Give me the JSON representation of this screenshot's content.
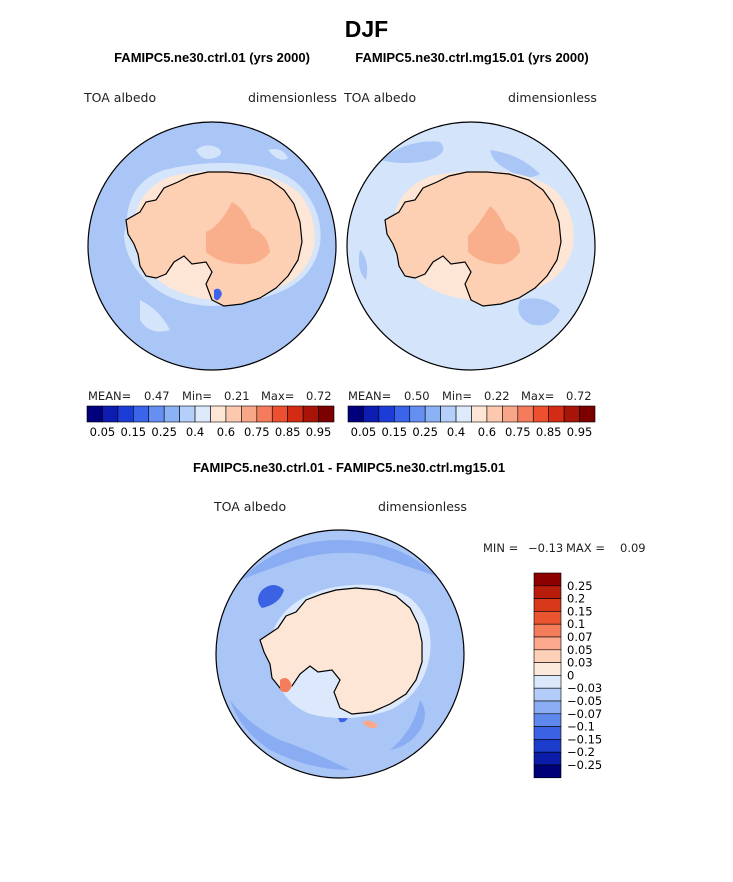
{
  "page": {
    "season": "DJF"
  },
  "chart_data": [
    {
      "type": "heatmap",
      "title": "FAMIPC5.ne30.ctrl.01 (yrs 2000)",
      "variable": "TOA albedo",
      "units": "dimensionless",
      "projection": "south polar stereographic",
      "stats": {
        "mean_label": "MEAN=",
        "mean": "0.47",
        "min_label": "Min=",
        "min": "0.21",
        "max_label": "Max=",
        "max": "0.72"
      },
      "levels": [
        0.05,
        0.1,
        0.15,
        0.2,
        0.25,
        0.3,
        0.35,
        0.4,
        0.5,
        0.6,
        0.65,
        0.7,
        0.75,
        0.8,
        0.85,
        0.9,
        0.95
      ],
      "tick_labels": [
        "0.05",
        "0.15",
        "0.25",
        "0.4",
        "0.6",
        "0.75",
        "0.85",
        "0.95"
      ]
    },
    {
      "type": "heatmap",
      "title": "FAMIPC5.ne30.ctrl.mg15.01 (yrs 2000)",
      "variable": "TOA albedo",
      "units": "dimensionless",
      "projection": "south polar stereographic",
      "stats": {
        "mean_label": "MEAN=",
        "mean": "0.50",
        "min_label": "Min=",
        "min": "0.22",
        "max_label": "Max=",
        "max": "0.72"
      },
      "levels": [
        0.05,
        0.1,
        0.15,
        0.2,
        0.25,
        0.3,
        0.35,
        0.4,
        0.5,
        0.6,
        0.65,
        0.7,
        0.75,
        0.8,
        0.85,
        0.9,
        0.95
      ],
      "tick_labels": [
        "0.05",
        "0.15",
        "0.25",
        "0.4",
        "0.6",
        "0.75",
        "0.85",
        "0.95"
      ]
    },
    {
      "type": "heatmap",
      "title": "FAMIPC5.ne30.ctrl.01 - FAMIPC5.ne30.ctrl.mg15.01",
      "variable": "TOA albedo",
      "units": "dimensionless",
      "projection": "south polar stereographic",
      "stats": {
        "min_label": "MIN =",
        "min": "−0.13",
        "max_label": "MAX =",
        "max": "0.09"
      },
      "levels": [
        "0.25",
        "0.2",
        "0.15",
        "0.1",
        "0.07",
        "0.05",
        "0.03",
        "0",
        "−0.03",
        "−0.05",
        "−0.07",
        "−0.1",
        "−0.15",
        "−0.2",
        "−0.25"
      ]
    }
  ],
  "colors": {
    "seq": [
      "#00007c",
      "#0c1cb0",
      "#1c3cd8",
      "#3a64ea",
      "#6590f2",
      "#8cb2f6",
      "#b4d0fa",
      "#dceafc",
      "#fde6d6",
      "#fcc8ae",
      "#f8a688",
      "#f47c5c",
      "#ec5030",
      "#d42c14",
      "#a81408",
      "#7c0000"
    ],
    "diff": [
      "#8c0000",
      "#b81c0a",
      "#d8381a",
      "#ea5530",
      "#f47e5c",
      "#fba88c",
      "#fdd0b8",
      "#fde8dc",
      "#dce8fc",
      "#b4ccf8",
      "#8aacf2",
      "#5e88ec",
      "#3a62e2",
      "#1c3ccc",
      "#0a1ca8",
      "#000078"
    ],
    "ocean_a": "#aac6f6",
    "ocean_b": "#d4e4fa",
    "ice_a": "#fdd0b4",
    "ice_peak": "#f9ae8c",
    "diff_ocean": "#aac6f6",
    "diff_land": "#fde6d6"
  }
}
